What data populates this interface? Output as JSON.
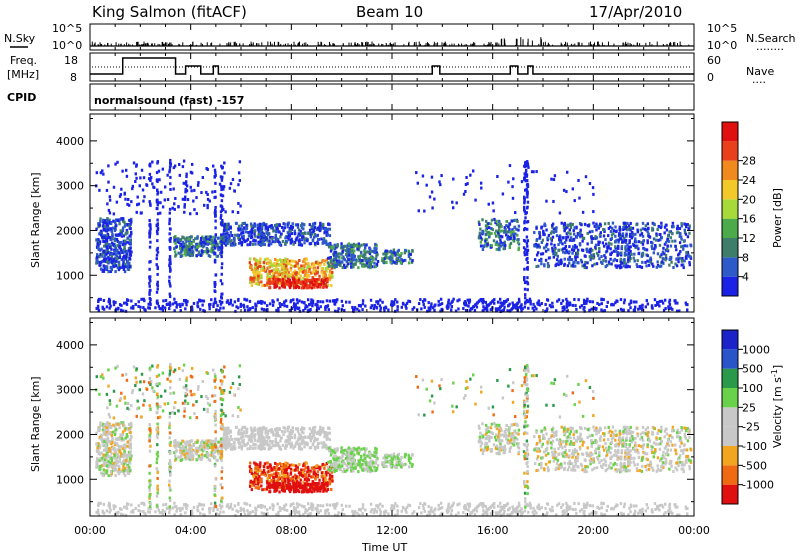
{
  "header": {
    "station": "King Salmon (fitACF)",
    "beam": "Beam 10",
    "date": "17/Apr/2010"
  },
  "panel_labels": {
    "nsky": "N.Sky",
    "freq": "Freq.",
    "mhz": "[MHz]",
    "cpid": "CPID",
    "nsearch": "N.Search",
    "nave": "Nave",
    "dotted": "........",
    "dotted_short": "....",
    "program": "normalsound (fast) -157"
  },
  "colors": {
    "power": [
      "#1a22e6",
      "#2d5ac8",
      "#3d7d6a",
      "#4caa4a",
      "#a6d93a",
      "#f2c82a",
      "#f08a1e",
      "#e8401a",
      "#e01010"
    ],
    "velocity": [
      "#e01010",
      "#f06a14",
      "#f2a620",
      "#c8c8c8",
      "#c8c8c8",
      "#6ad24a",
      "#2a9a4a",
      "#2a55c8",
      "#1a22c8"
    ]
  },
  "chart_data": [
    {
      "type": "line",
      "name": "top-strip",
      "x_ticks_hours": [
        0,
        4,
        8,
        12,
        16,
        20,
        24
      ],
      "nsky_ticks": [
        "10^5",
        "10^0"
      ],
      "freq_ticks": [
        "18",
        "8"
      ],
      "nave_ticks": [
        "60",
        "0"
      ],
      "nsearch_ticks": [
        "10^5",
        "10^0"
      ],
      "freq_steps": [
        {
          "t": 0.0,
          "f": 8
        },
        {
          "t": 1.3,
          "f": 18
        },
        {
          "t": 3.4,
          "f": 8
        },
        {
          "t": 3.8,
          "f": 13
        },
        {
          "t": 4.4,
          "f": 8
        },
        {
          "t": 4.9,
          "f": 13
        },
        {
          "t": 5.1,
          "f": 8
        },
        {
          "t": 13.6,
          "f": 8
        },
        {
          "t": 13.6,
          "f": 13
        },
        {
          "t": 13.9,
          "f": 8
        },
        {
          "t": 16.5,
          "f": 8
        },
        {
          "t": 16.7,
          "f": 13
        },
        {
          "t": 17.0,
          "f": 8
        },
        {
          "t": 17.4,
          "f": 13
        },
        {
          "t": 17.6,
          "f": 8
        },
        {
          "t": 24.0,
          "f": 8
        }
      ]
    },
    {
      "type": "heatmap",
      "name": "power",
      "xlabel": "",
      "ylabel": "Slant Range [km]",
      "xlim": [
        0,
        24
      ],
      "ylim": [
        180,
        4600
      ],
      "y_ticks": [
        1000,
        2000,
        3000,
        4000
      ],
      "colorbar_label": "Power [dB]",
      "colorbar_ticks": [
        "4",
        "8",
        "12",
        "16",
        "20",
        "24",
        "28"
      ]
    },
    {
      "type": "heatmap",
      "name": "velocity",
      "xlabel": "Time UT",
      "ylabel": "Slant Range [km]",
      "xlim": [
        0,
        24
      ],
      "ylim": [
        180,
        4600
      ],
      "x_ticks": [
        "00:00",
        "04:00",
        "08:00",
        "12:00",
        "16:00",
        "20:00",
        "00:00"
      ],
      "y_ticks": [
        1000,
        2000,
        3000,
        4000
      ],
      "colorbar_label": "Velocity [m s",
      "colorbar_exp": "-1",
      "colorbar_close": "]",
      "colorbar_ticks": [
        "-1000",
        "-500",
        "-100",
        "-25",
        "25",
        "100",
        "500",
        "1000"
      ]
    }
  ]
}
